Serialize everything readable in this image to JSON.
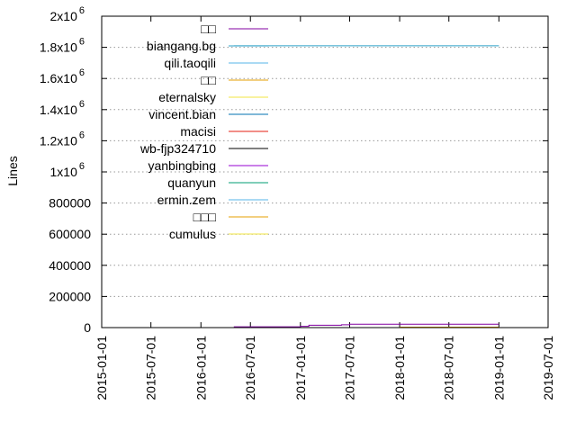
{
  "chart_data": {
    "type": "line",
    "title": "",
    "xlabel": "",
    "ylabel": "Lines",
    "xlim": [
      "2015-01-01",
      "2019-07-01"
    ],
    "ylim": [
      0,
      2000000
    ],
    "x_ticks": [
      "2015-01-01",
      "2015-07-01",
      "2016-01-01",
      "2016-07-01",
      "2017-01-01",
      "2017-07-01",
      "2018-01-01",
      "2018-07-01",
      "2019-01-01",
      "2019-07-01"
    ],
    "y_ticks": [
      {
        "value": 0,
        "label": "0"
      },
      {
        "value": 200000,
        "label": "200000"
      },
      {
        "value": 400000,
        "label": "400000"
      },
      {
        "value": 600000,
        "label": "600000"
      },
      {
        "value": 800000,
        "label": "800000"
      },
      {
        "value": 1000000,
        "label": "1x10",
        "exp": "6"
      },
      {
        "value": 1200000,
        "label": "1.2x10",
        "exp": "6"
      },
      {
        "value": 1400000,
        "label": "1.4x10",
        "exp": "6"
      },
      {
        "value": 1600000,
        "label": "1.6x10",
        "exp": "6"
      },
      {
        "value": 1800000,
        "label": "1.8x10",
        "exp": "6"
      },
      {
        "value": 2000000,
        "label": "2x10",
        "exp": "6"
      }
    ],
    "grid": "y-dotted",
    "legend_position": "top-left",
    "series": [
      {
        "name": "□□",
        "color": "#8000a0",
        "x": [
          "2016-05-01",
          "2017-01-01",
          "2017-02-01",
          "2017-06-01",
          "2017-07-01",
          "2019-01-01"
        ],
        "y": [
          5000,
          8000,
          15000,
          18000,
          22000,
          22000
        ]
      },
      {
        "name": "biangang.bg",
        "color": "#2ca0c8",
        "x": [
          "2016-05-01",
          "2019-01-01"
        ],
        "y": [
          1810000,
          1810000
        ]
      },
      {
        "name": "qili.taoqili",
        "color": "#56b4e9",
        "x": [],
        "y": []
      },
      {
        "name": "□□",
        "color": "#e69f00",
        "x": [
          "2018-01-01",
          "2019-01-01"
        ],
        "y": [
          3000,
          3000
        ]
      },
      {
        "name": "eternalsky",
        "color": "#f0e442",
        "x": [],
        "y": []
      },
      {
        "name": "vincent.bian",
        "color": "#0072b2",
        "x": [],
        "y": []
      },
      {
        "name": "macisi",
        "color": "#e51e10",
        "x": [],
        "y": []
      },
      {
        "name": "wb-fjp324710",
        "color": "#000000",
        "x": [],
        "y": []
      },
      {
        "name": "yanbingbing",
        "color": "#9400d3",
        "x": [],
        "y": []
      },
      {
        "name": "quanyun",
        "color": "#009e73",
        "x": [],
        "y": []
      },
      {
        "name": "ermin.zem",
        "color": "#56b4e9",
        "x": [],
        "y": []
      },
      {
        "name": "□□□",
        "color": "#e69f00",
        "x": [],
        "y": []
      },
      {
        "name": "cumulus",
        "color": "#f0e442",
        "x": [],
        "y": []
      }
    ]
  }
}
